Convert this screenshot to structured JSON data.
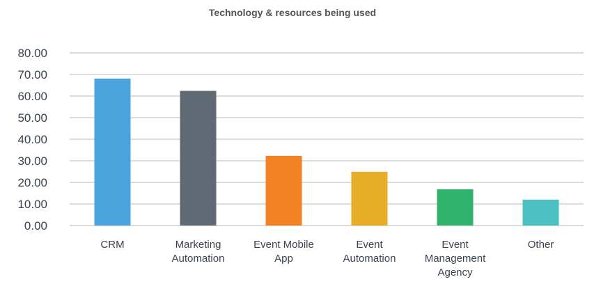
{
  "chart_data": {
    "type": "bar",
    "title": "Technology & resources being used",
    "xlabel": "",
    "ylabel": "",
    "ylim": [
      0,
      80
    ],
    "yticks": [
      "0.00",
      "10.00",
      "20.00",
      "30.00",
      "40.00",
      "50.00",
      "60.00",
      "70.00",
      "80.00"
    ],
    "grid": true,
    "categories": [
      [
        "CRM"
      ],
      [
        "Marketing",
        "Automation"
      ],
      [
        "Event Mobile",
        "App"
      ],
      [
        "Event",
        "Automation"
      ],
      [
        "Event",
        "Management",
        "Agency"
      ],
      [
        "Other"
      ]
    ],
    "values": [
      68.1,
      62.4,
      32.3,
      24.9,
      16.8,
      12.0
    ],
    "colors": [
      "#4aa3dc",
      "#5f6a74",
      "#f08124",
      "#e8ad28",
      "#2fb36a",
      "#4bc1c1"
    ]
  }
}
